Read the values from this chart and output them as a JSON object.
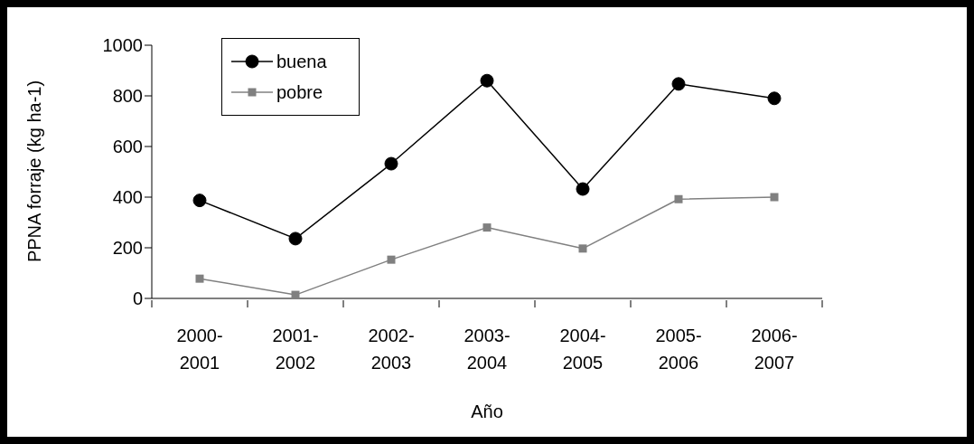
{
  "chart_data": {
    "type": "line",
    "xlabel": "Año",
    "ylabel": "PPNA forraje (kg ha-1)",
    "categories": [
      "2000-2001",
      "2001-2002",
      "2002-2003",
      "2003-2004",
      "2004-2005",
      "2005-2006",
      "2006-2007"
    ],
    "series": [
      {
        "name": "buena",
        "color": "#000000",
        "marker": "circle",
        "values": [
          387,
          236,
          532,
          860,
          432,
          847,
          790
        ]
      },
      {
        "name": "pobre",
        "color": "#808080",
        "marker": "square",
        "values": [
          78,
          14,
          153,
          280,
          197,
          392,
          400
        ]
      }
    ],
    "ylim": [
      0,
      1000
    ],
    "yticks": [
      0,
      200,
      400,
      600,
      800,
      1000
    ],
    "legend": "top left",
    "line_style": "solid"
  }
}
